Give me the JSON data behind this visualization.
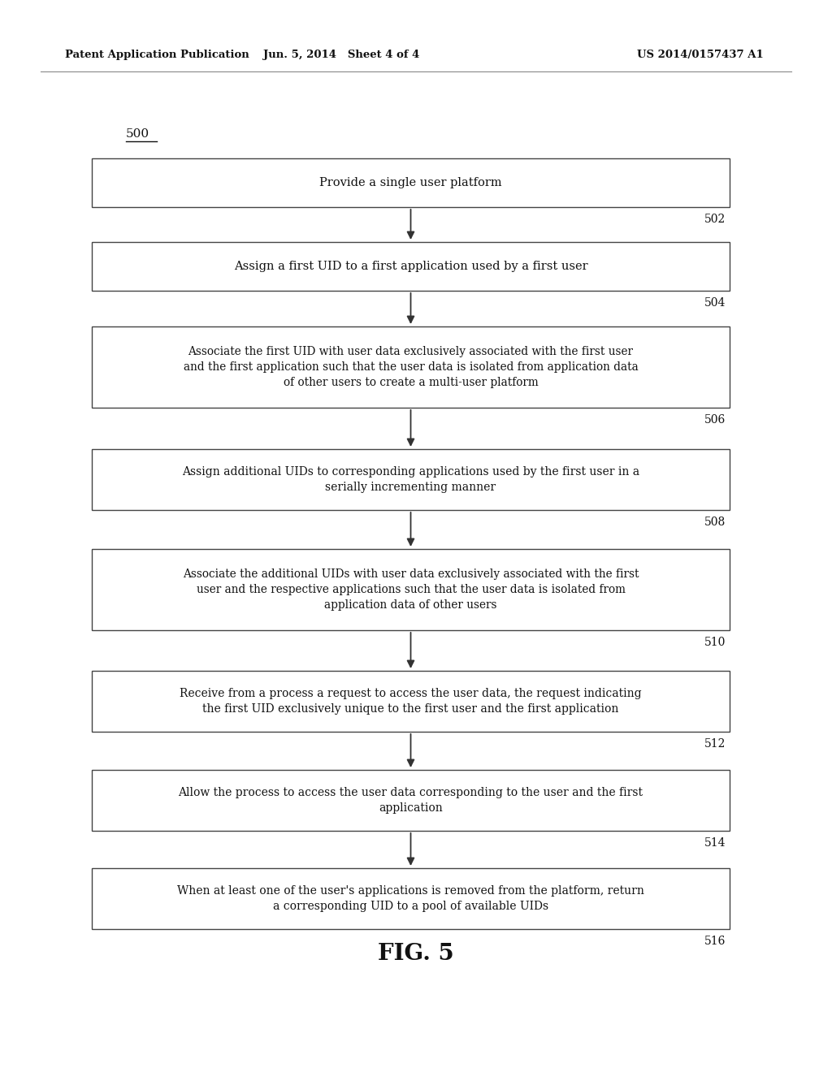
{
  "header_left": "Patent Application Publication",
  "header_center": "Jun. 5, 2014   Sheet 4 of 4",
  "header_right": "US 2014/0157437 A1",
  "diagram_label": "500",
  "figure_label": "FIG. 5",
  "boxes": [
    {
      "id": 502,
      "lines": [
        "Provide a single user platform"
      ],
      "align": "center"
    },
    {
      "id": 504,
      "lines": [
        "Assign a first UID to a first application used by a first user"
      ],
      "align": "center"
    },
    {
      "id": 506,
      "lines": [
        "Associate the first UID with user data exclusively associated with the first user",
        "and the first application such that the user data is isolated from application data",
        "of other users to create a multi-user platform"
      ],
      "align": "center"
    },
    {
      "id": 508,
      "lines": [
        "Assign additional UIDs to corresponding applications used by the first user in a",
        "serially incrementing manner"
      ],
      "align": "center"
    },
    {
      "id": 510,
      "lines": [
        "Associate the additional UIDs with user data exclusively associated with the first",
        "user and the respective applications such that the user data is isolated from",
        "application data of other users"
      ],
      "align": "center"
    },
    {
      "id": 512,
      "lines": [
        "Receive from a process a request to access the user data, the request indicating",
        "the first UID exclusively unique to the first user and the first application"
      ],
      "align": "center"
    },
    {
      "id": 514,
      "lines": [
        "Allow the process to access the user data corresponding to the user and the first",
        "application"
      ],
      "align": "center"
    },
    {
      "id": 516,
      "lines": [
        "When at least one of the user's applications is removed from the platform, return",
        "a corresponding UID to a pool of available UIDs"
      ],
      "align": "center"
    }
  ],
  "background_color": "#ffffff",
  "box_edge_color": "#444444",
  "text_color": "#111111",
  "arrow_color": "#333333"
}
